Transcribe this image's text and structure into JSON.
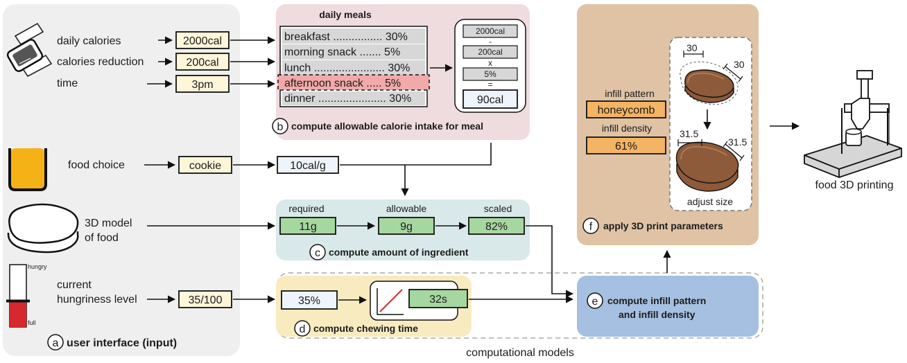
{
  "colors": {
    "panel_a": "#efefef",
    "panel_b": "#eedcdf",
    "panel_c": "#d9e9ea",
    "panel_d": "#f8ebc0",
    "panel_e": "#a5c0e0",
    "panel_f": "#dfc3a4",
    "highlight": "#f2a9a9",
    "value_box": "#fdf6d8",
    "green_box": "#a7d7a0",
    "orange_box": "#f3b463",
    "blue_box": "#eef4fb",
    "cookie": "#8d5a3a",
    "juice": "#f5b217",
    "hunger_red": "#d7282e"
  },
  "panel_a": {
    "badge": "a",
    "title": "user interface (input)",
    "inputs": [
      {
        "label": "daily calories",
        "value": "2000cal"
      },
      {
        "label": "calories reduction",
        "value": "200cal"
      },
      {
        "label": "time",
        "value": "3pm"
      },
      {
        "label": "food choice",
        "value": "cookie"
      }
    ],
    "model_label_line1": "3D model",
    "model_label_line2": "of food",
    "hunger_label_line1": "current",
    "hunger_label_line2": "hungriness level",
    "hunger_value": "35/100",
    "hunger_level": 0.35,
    "gauge_top": "hungry",
    "gauge_bottom": "full"
  },
  "panel_b": {
    "badge": "b",
    "title": "compute allowable calorie intake for meal",
    "meals_title": "daily meals",
    "meals": [
      "breakfast ................ 30%",
      "morning snack ....... 5%",
      "lunch ....................... 30%",
      "afternoon snack ..... 5%",
      "dinner ...................... 30%"
    ],
    "calc": {
      "v1": "2000cal",
      "op1": "-",
      "v2": "200cal",
      "op2": "x",
      "v3": "5%",
      "op3": "=",
      "result": "90cal"
    }
  },
  "density_value": "10cal/g",
  "panel_c": {
    "badge": "c",
    "title": "compute amount of ingredient",
    "required_label": "required",
    "required_value": "11g",
    "allowable_label": "allowable",
    "allowable_value": "9g",
    "scaled_label": "scaled",
    "scaled_value": "82%"
  },
  "panel_d": {
    "badge": "d",
    "title": "compute chewing time",
    "input_value": "35%",
    "output_value": "32s"
  },
  "panel_e": {
    "badge": "e",
    "title_line1": "compute infill pattern",
    "title_line2": "and infill density"
  },
  "panel_f": {
    "badge": "f",
    "title": "apply 3D print parameters",
    "pattern_label": "infill pattern",
    "pattern_value": "honeycomb",
    "density_label": "infill density",
    "density_value": "61%",
    "dim_before_1": "30",
    "dim_before_2": "30",
    "dim_after_1": "31.5",
    "dim_after_2": "31.5",
    "adjust_label": "adjust size"
  },
  "computational_models_label": "computational models",
  "printer_label": "food 3D printing"
}
